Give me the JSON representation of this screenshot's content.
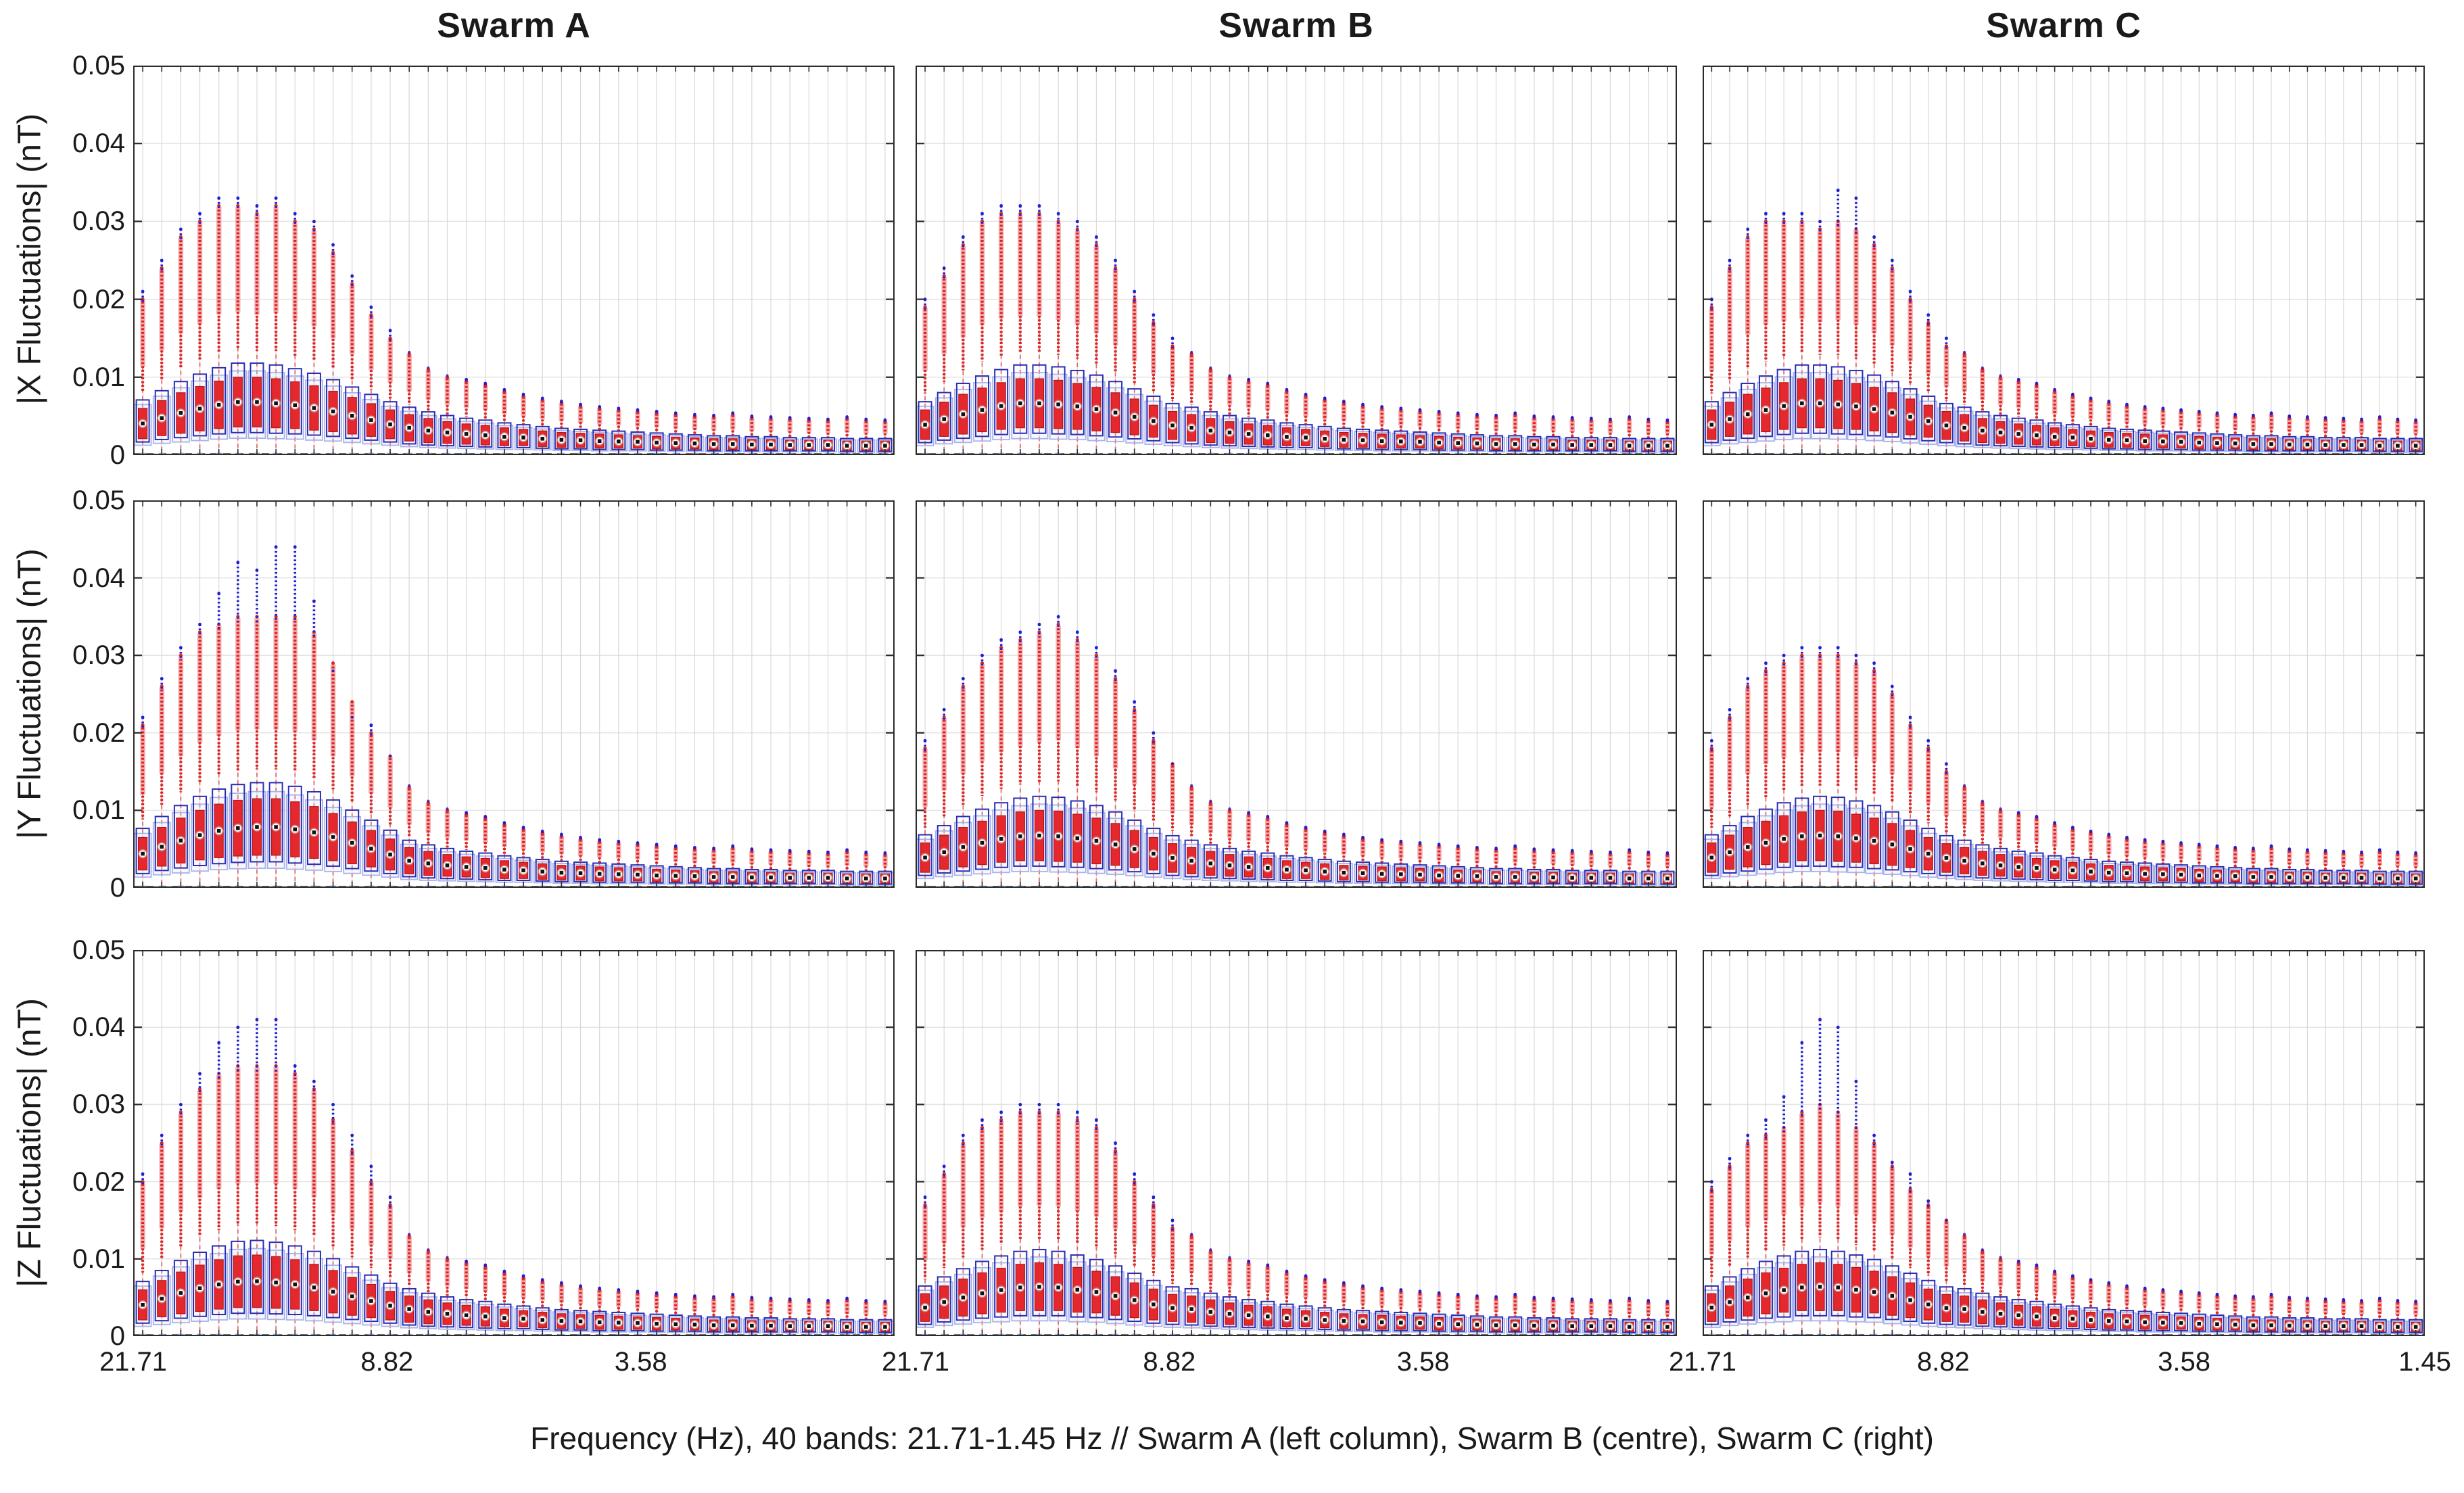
{
  "columns": [
    {
      "title": "Swarm A"
    },
    {
      "title": "Swarm B"
    },
    {
      "title": "Swarm C"
    }
  ],
  "rows": [
    {
      "ylabel": "|X Fluctuations| (nT)"
    },
    {
      "ylabel": "|Y Fluctuations| (nT)"
    },
    {
      "ylabel": "|Z Fluctuations| (nT)"
    }
  ],
  "caption": "Frequency (Hz), 40 bands: 21.71-1.45 Hz // Swarm A (left column), Swarm B (centre), Swarm C (right)",
  "axes": {
    "ylim": [
      0,
      0.05
    ],
    "y_ticks": [
      {
        "v": 0,
        "label": "0"
      },
      {
        "v": 0.01,
        "label": "0.01"
      },
      {
        "v": 0.02,
        "label": "0.02"
      },
      {
        "v": 0.03,
        "label": "0.03"
      },
      {
        "v": 0.04,
        "label": "0.04"
      },
      {
        "v": 0.05,
        "label": "0.05"
      }
    ],
    "x_ticks": [
      {
        "label": "21.71",
        "frac": 0
      },
      {
        "label": "8.82",
        "frac": 0.3333
      },
      {
        "label": "3.58",
        "frac": 0.6667
      },
      {
        "label": "1.45",
        "frac": 1,
        "only_last_column": true
      }
    ],
    "x_scale": "log",
    "freq_range_hz": [
      21.71,
      1.45
    ],
    "n_bands": 40,
    "grid": true
  },
  "colors": {
    "red_box": "#e5282d",
    "red_box_edge": "#b51616",
    "blue_box_edge": "#2a2eb5",
    "lavender_box_edge": "#aab3e8",
    "lavender_box_fill": "rgba(200,208,245,0.18)",
    "pink_cluster": "#f2a9ab",
    "red_cluster": "#dc2626",
    "blue_cluster": "#1f1fd0",
    "whisker": "#e06a6a",
    "periwinkle": "#9aa2e6",
    "zero_line": "#444444",
    "grid_vertical": "#d9d9d9",
    "grid_horizontal": "#e4e4e4",
    "axis": "#2b2b2b",
    "text": "#1a1a1a"
  },
  "chart_data": {
    "type": "boxplot-grid",
    "description": "3x3 grid: rows = |X|,|Y|,|Z| magnetic fluctuations (nT); columns = Swarm A,B,C. Each panel: 40 log-spaced frequency bands 21.71-1.45 Hz, each band an overlaid red boxplot (filled) and blue boxplot (open) with red dashed whiskers to 0, dense red/pink outlier columns and blue outlier spikes above. Median marker = white circle with black square at box centre.",
    "median_marker": "white circle with black square at centre of q1-q3 box",
    "shared_tails_bands_15_to_40": {
      "red_max": [
        0.013,
        0.011,
        0.01,
        0.0095,
        0.009,
        0.0082,
        0.0076,
        0.0071,
        0.0067,
        0.0063,
        0.006,
        0.0058,
        0.0056,
        0.0054,
        0.0052,
        0.005,
        0.0049,
        0.0052,
        0.0048,
        0.0047,
        0.0046,
        0.0045,
        0.0044,
        0.0047,
        0.0044,
        0.0043
      ],
      "blue_max": [
        0.0132,
        0.0112,
        0.0102,
        0.0097,
        0.0092,
        0.0084,
        0.0078,
        0.0073,
        0.0069,
        0.0065,
        0.0062,
        0.006,
        0.0058,
        0.0056,
        0.0054,
        0.0052,
        0.0051,
        0.0054,
        0.005,
        0.0049,
        0.0048,
        0.0047,
        0.0046,
        0.0049,
        0.0046,
        0.0045
      ],
      "q3": [
        0.0052,
        0.0047,
        0.0043,
        0.004,
        0.0038,
        0.0035,
        0.0033,
        0.0031,
        0.0029,
        0.0028,
        0.0027,
        0.0026,
        0.0025,
        0.0024,
        0.0023,
        0.0022,
        0.0021,
        0.0021,
        0.002,
        0.002,
        0.0019,
        0.0019,
        0.0019,
        0.0018,
        0.0018,
        0.0018
      ],
      "q1": [
        0.0018,
        0.0016,
        0.0015,
        0.0014,
        0.0013,
        0.0012,
        0.0012,
        0.0011,
        0.001,
        0.001,
        0.0009,
        0.0009,
        0.0009,
        0.0008,
        0.0008,
        0.0008,
        0.0007,
        0.0007,
        0.0007,
        0.0007,
        0.0007,
        0.0007,
        0.0007,
        0.0006,
        0.0006,
        0.0006
      ]
    },
    "panels": [
      {
        "component": "|X Fluctuations|",
        "satellite": "Swarm A",
        "row": 0,
        "col": 0,
        "red_max_head": [
          0.02,
          0.024,
          0.028,
          0.03,
          0.032,
          0.032,
          0.031,
          0.032,
          0.03,
          0.029,
          0.026,
          0.022,
          0.018,
          0.015
        ],
        "blue_max_head": [
          0.021,
          0.025,
          0.029,
          0.031,
          0.033,
          0.033,
          0.032,
          0.033,
          0.031,
          0.03,
          0.027,
          0.023,
          0.019,
          0.016
        ],
        "q3_head": [
          0.006,
          0.007,
          0.008,
          0.0088,
          0.0095,
          0.01,
          0.01,
          0.0098,
          0.0094,
          0.0089,
          0.0082,
          0.0074,
          0.0066,
          0.0058
        ],
        "q1_head": [
          0.0021,
          0.0025,
          0.0028,
          0.0031,
          0.0034,
          0.0036,
          0.0036,
          0.0035,
          0.0034,
          0.0032,
          0.003,
          0.0027,
          0.0024,
          0.0021
        ]
      },
      {
        "component": "|X Fluctuations|",
        "satellite": "Swarm B",
        "row": 0,
        "col": 1,
        "red_max_head": [
          0.019,
          0.023,
          0.027,
          0.03,
          0.031,
          0.031,
          0.031,
          0.03,
          0.029,
          0.027,
          0.024,
          0.02,
          0.017,
          0.014
        ],
        "blue_max_head": [
          0.02,
          0.024,
          0.028,
          0.031,
          0.032,
          0.032,
          0.032,
          0.031,
          0.03,
          0.028,
          0.025,
          0.021,
          0.018,
          0.015
        ],
        "q3_head": [
          0.0058,
          0.0068,
          0.0078,
          0.0086,
          0.0093,
          0.0098,
          0.0098,
          0.0096,
          0.0092,
          0.0087,
          0.008,
          0.0072,
          0.0064,
          0.0056
        ],
        "q1_head": [
          0.002,
          0.0024,
          0.0027,
          0.003,
          0.0033,
          0.0035,
          0.0035,
          0.0034,
          0.0033,
          0.0031,
          0.0029,
          0.0026,
          0.0023,
          0.002
        ]
      },
      {
        "component": "|X Fluctuations|",
        "satellite": "Swarm C",
        "row": 0,
        "col": 2,
        "red_max_head": [
          0.019,
          0.024,
          0.028,
          0.03,
          0.03,
          0.03,
          0.029,
          0.03,
          0.029,
          0.027,
          0.024,
          0.02,
          0.017,
          0.014
        ],
        "blue_max_head": [
          0.02,
          0.025,
          0.029,
          0.031,
          0.031,
          0.031,
          0.03,
          0.034,
          0.033,
          0.028,
          0.025,
          0.021,
          0.018,
          0.015
        ],
        "q3_head": [
          0.0058,
          0.0068,
          0.0078,
          0.0086,
          0.0093,
          0.0098,
          0.0098,
          0.0096,
          0.0092,
          0.0087,
          0.008,
          0.0072,
          0.0064,
          0.0056
        ],
        "q1_head": [
          0.002,
          0.0024,
          0.0027,
          0.003,
          0.0033,
          0.0035,
          0.0035,
          0.0034,
          0.0033,
          0.0031,
          0.0029,
          0.0026,
          0.0023,
          0.002
        ]
      },
      {
        "component": "|Y Fluctuations|",
        "satellite": "Swarm A",
        "row": 1,
        "col": 0,
        "red_max_head": [
          0.021,
          0.026,
          0.03,
          0.033,
          0.034,
          0.035,
          0.035,
          0.035,
          0.035,
          0.033,
          0.029,
          0.024,
          0.02,
          0.017
        ],
        "blue_max_head": [
          0.022,
          0.027,
          0.031,
          0.034,
          0.038,
          0.042,
          0.041,
          0.044,
          0.044,
          0.037,
          0.028,
          0.022,
          0.021,
          0.017
        ],
        "q3_head": [
          0.0065,
          0.0078,
          0.009,
          0.01,
          0.0108,
          0.0113,
          0.0115,
          0.0115,
          0.0111,
          0.0105,
          0.0096,
          0.0085,
          0.0074,
          0.0063
        ],
        "q1_head": [
          0.0023,
          0.0028,
          0.0032,
          0.0036,
          0.0039,
          0.0041,
          0.0042,
          0.0042,
          0.004,
          0.0038,
          0.0035,
          0.0031,
          0.0027,
          0.0023
        ]
      },
      {
        "component": "|Y Fluctuations|",
        "satellite": "Swarm B",
        "row": 1,
        "col": 1,
        "red_max_head": [
          0.018,
          0.022,
          0.026,
          0.029,
          0.031,
          0.032,
          0.033,
          0.034,
          0.032,
          0.03,
          0.027,
          0.023,
          0.019,
          0.016
        ],
        "blue_max_head": [
          0.019,
          0.023,
          0.027,
          0.03,
          0.032,
          0.033,
          0.034,
          0.035,
          0.033,
          0.031,
          0.028,
          0.024,
          0.02,
          0.016
        ],
        "q3_head": [
          0.0058,
          0.0068,
          0.0078,
          0.0086,
          0.0093,
          0.0098,
          0.01,
          0.0099,
          0.0095,
          0.009,
          0.0083,
          0.0074,
          0.0065,
          0.0057
        ],
        "q1_head": [
          0.002,
          0.0024,
          0.0027,
          0.003,
          0.0033,
          0.0035,
          0.0035,
          0.0034,
          0.0033,
          0.0031,
          0.0029,
          0.0026,
          0.0023,
          0.002
        ]
      },
      {
        "component": "|Y Fluctuations|",
        "satellite": "Swarm C",
        "row": 1,
        "col": 2,
        "red_max_head": [
          0.018,
          0.022,
          0.026,
          0.028,
          0.029,
          0.03,
          0.03,
          0.03,
          0.029,
          0.028,
          0.025,
          0.021,
          0.018,
          0.015
        ],
        "blue_max_head": [
          0.019,
          0.023,
          0.027,
          0.029,
          0.03,
          0.031,
          0.031,
          0.031,
          0.03,
          0.029,
          0.026,
          0.022,
          0.019,
          0.016
        ],
        "q3_head": [
          0.0058,
          0.0068,
          0.0078,
          0.0086,
          0.0093,
          0.0098,
          0.01,
          0.0099,
          0.0095,
          0.009,
          0.0083,
          0.0074,
          0.0065,
          0.0057
        ],
        "q1_head": [
          0.002,
          0.0024,
          0.0027,
          0.003,
          0.0033,
          0.0035,
          0.0035,
          0.0034,
          0.0033,
          0.0031,
          0.0029,
          0.0026,
          0.0023,
          0.002
        ]
      },
      {
        "component": "|Z Fluctuations|",
        "satellite": "Swarm A",
        "row": 2,
        "col": 0,
        "red_max_head": [
          0.02,
          0.025,
          0.029,
          0.032,
          0.034,
          0.035,
          0.035,
          0.035,
          0.034,
          0.032,
          0.028,
          0.024,
          0.02,
          0.017
        ],
        "blue_max_head": [
          0.021,
          0.026,
          0.03,
          0.034,
          0.038,
          0.04,
          0.041,
          0.041,
          0.035,
          0.033,
          0.03,
          0.026,
          0.022,
          0.018
        ],
        "q3_head": [
          0.006,
          0.0072,
          0.0083,
          0.0092,
          0.0099,
          0.0104,
          0.0105,
          0.0103,
          0.0099,
          0.0093,
          0.0085,
          0.0076,
          0.0067,
          0.0058
        ],
        "q1_head": [
          0.0021,
          0.0025,
          0.0029,
          0.0032,
          0.0035,
          0.0037,
          0.0037,
          0.0036,
          0.0035,
          0.0033,
          0.003,
          0.0027,
          0.0024,
          0.0021
        ]
      },
      {
        "component": "|Z Fluctuations|",
        "satellite": "Swarm B",
        "row": 2,
        "col": 1,
        "red_max_head": [
          0.017,
          0.021,
          0.025,
          0.027,
          0.028,
          0.029,
          0.029,
          0.029,
          0.028,
          0.027,
          0.024,
          0.02,
          0.017,
          0.014
        ],
        "blue_max_head": [
          0.018,
          0.022,
          0.026,
          0.028,
          0.029,
          0.03,
          0.03,
          0.03,
          0.029,
          0.028,
          0.025,
          0.021,
          0.018,
          0.015
        ],
        "q3_head": [
          0.0055,
          0.0065,
          0.0074,
          0.0082,
          0.0088,
          0.0093,
          0.0095,
          0.0093,
          0.0089,
          0.0084,
          0.0077,
          0.0069,
          0.0061,
          0.0054
        ],
        "q1_head": [
          0.0019,
          0.0023,
          0.0026,
          0.0029,
          0.0031,
          0.0033,
          0.0033,
          0.0033,
          0.0031,
          0.003,
          0.0027,
          0.0024,
          0.0021,
          0.0019
        ]
      },
      {
        "component": "|Z Fluctuations|",
        "satellite": "Swarm C",
        "row": 2,
        "col": 2,
        "red_max_head": [
          0.019,
          0.022,
          0.025,
          0.026,
          0.027,
          0.029,
          0.03,
          0.029,
          0.027,
          0.025,
          0.022,
          0.019,
          0.017,
          0.015
        ],
        "blue_max_head": [
          0.02,
          0.023,
          0.026,
          0.028,
          0.031,
          0.038,
          0.041,
          0.04,
          0.033,
          0.026,
          0.0225,
          0.021,
          0.0175,
          0.015
        ],
        "q3_head": [
          0.0055,
          0.0065,
          0.0074,
          0.0082,
          0.0088,
          0.0093,
          0.0095,
          0.0093,
          0.0089,
          0.0084,
          0.0077,
          0.0069,
          0.0061,
          0.0054
        ],
        "q1_head": [
          0.0019,
          0.0023,
          0.0026,
          0.0029,
          0.0031,
          0.0033,
          0.0033,
          0.0033,
          0.0031,
          0.003,
          0.0027,
          0.0024,
          0.0021,
          0.0019
        ]
      }
    ]
  }
}
